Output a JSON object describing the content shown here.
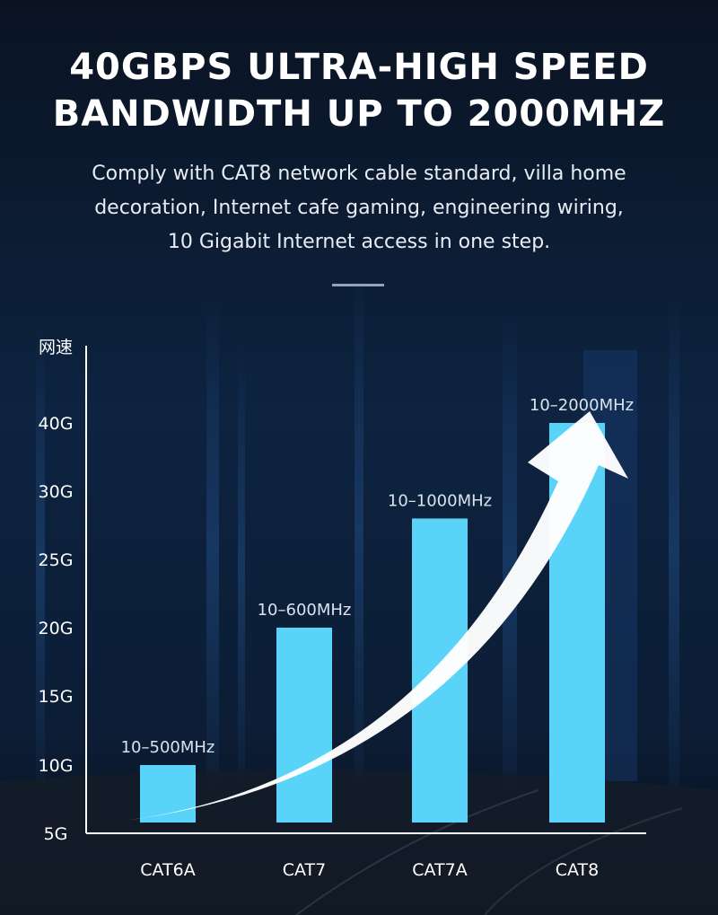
{
  "header": {
    "title_line1": "40GBPS ULTRA-HIGH SPEED",
    "title_line2": "BANDWIDTH UP TO 2000MHZ",
    "subtitle_line1": "Comply with CAT8 network cable standard, villa home",
    "subtitle_line2": "decoration, Internet cafe gaming, engineering wiring,",
    "subtitle_line3": "10 Gigabit Internet access in one step."
  },
  "chart_data": {
    "type": "bar",
    "ylabel": "网速",
    "xlabel": "",
    "categories": [
      "CAT6A",
      "CAT7",
      "CAT7A",
      "CAT8"
    ],
    "values": [
      10,
      20,
      28,
      40
    ],
    "unit": "G",
    "bar_labels": [
      "10–500MHz",
      "10–600MHz",
      "10–1000MHz",
      "10–2000MHz"
    ],
    "y_ticks": [
      "5G",
      "10G",
      "15G",
      "20G",
      "25G",
      "30G",
      "40G"
    ],
    "y_tick_values": [
      5,
      10,
      15,
      20,
      25,
      30,
      40
    ],
    "grid": false,
    "annotation": "rising arrow",
    "bar_color": "#59d3f7",
    "accent_color": "#ffffff"
  }
}
